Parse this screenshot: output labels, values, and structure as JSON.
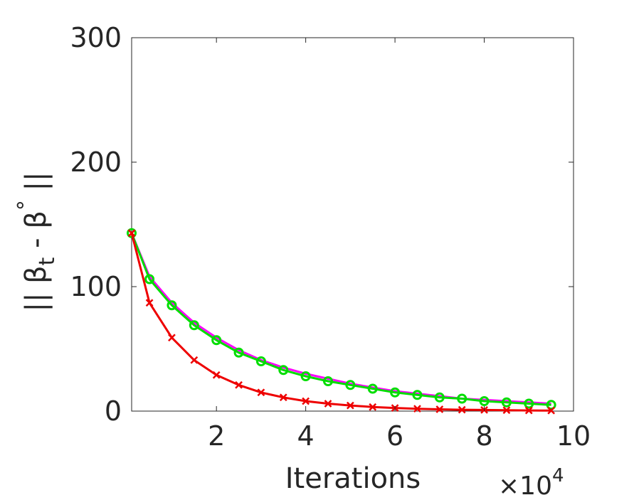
{
  "chart_data": {
    "type": "line",
    "xlabel": "Iterations",
    "ylabel": "|| β_t - β^* ||",
    "x_exponent": "×10^4",
    "x_ticks": [
      2,
      4,
      6,
      8,
      10
    ],
    "y_ticks": [
      0,
      100,
      200,
      300
    ],
    "xlim": [
      0.1,
      10
    ],
    "ylim": [
      0,
      300
    ],
    "grid": false,
    "series": [
      {
        "color": "#ff00ff",
        "marker": "none",
        "x": [
          0.1,
          0.5,
          1.0,
          1.5,
          2.0,
          2.5,
          3.0,
          3.5,
          4.0,
          4.5,
          5.0,
          5.5,
          6.0,
          6.5,
          7.0,
          7.5,
          8.0,
          8.5,
          9.0,
          9.5
        ],
        "y": [
          143,
          108,
          87,
          71,
          59,
          49,
          41,
          35,
          30,
          26,
          22,
          19,
          16,
          14,
          12,
          10,
          9,
          8,
          7,
          6
        ]
      },
      {
        "color": "#00dd00",
        "marker": "circle",
        "x": [
          0.1,
          0.5,
          1.0,
          1.5,
          2.0,
          2.5,
          3.0,
          3.5,
          4.0,
          4.5,
          5.0,
          5.5,
          6.0,
          6.5,
          7.0,
          7.5,
          8.0,
          8.5,
          9.0,
          9.5
        ],
        "y": [
          143,
          106,
          85,
          69,
          57,
          47,
          40,
          33,
          28,
          24,
          21,
          18,
          15,
          13,
          11,
          10,
          8,
          7,
          6,
          5
        ]
      },
      {
        "color": "#ee0000",
        "marker": "x",
        "x": [
          0.1,
          0.5,
          1.0,
          1.5,
          2.0,
          2.5,
          3.0,
          3.5,
          4.0,
          4.5,
          5.0,
          5.5,
          6.0,
          6.5,
          7.0,
          7.5,
          8.0,
          8.5,
          9.0,
          9.5
        ],
        "y": [
          143,
          87,
          59,
          41,
          29,
          21,
          15,
          11,
          8,
          6,
          4.5,
          3.3,
          2.5,
          1.9,
          1.4,
          1.1,
          0.9,
          0.7,
          0.5,
          0.4
        ]
      }
    ]
  }
}
